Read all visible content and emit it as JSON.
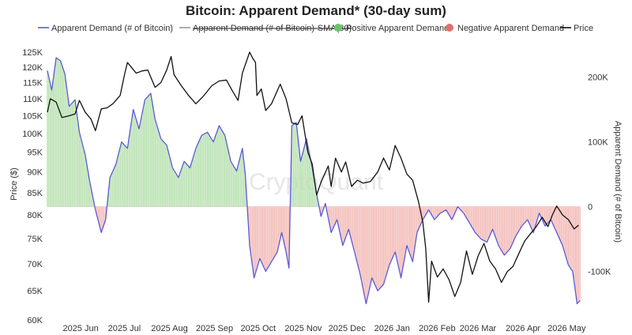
{
  "chart_data": {
    "type": "line",
    "title": "Bitcoin: Apparent Demand* (30-day sum)",
    "watermark": "CryptoQuant",
    "legend": {
      "placement": "top",
      "items": [
        {
          "label": "Apparent Demand (# of Bitcoin)",
          "color": "#5b5bd6",
          "style": "line"
        },
        {
          "label": "Apparent Demand (# of Bitcoin)-SMA(30)",
          "color": "#999999",
          "style": "strikethrough"
        },
        {
          "label": "Positive Apparent Demand",
          "color": "#6cc46c",
          "style": "dot"
        },
        {
          "label": "Negative Apparent Demand",
          "color": "#e07070",
          "style": "dot"
        },
        {
          "label": "Price",
          "color": "#111111",
          "style": "line"
        }
      ]
    },
    "left_axis": {
      "label": "Price ($)",
      "scale": "log",
      "range": [
        60000,
        128000
      ],
      "ticks": [
        60000,
        65000,
        70000,
        75000,
        80000,
        85000,
        90000,
        95000,
        100000,
        105000,
        110000,
        115000,
        120000,
        125000
      ],
      "tick_labels": [
        "60K",
        "65K",
        "70K",
        "75K",
        "80K",
        "85K",
        "90K",
        "95K",
        "100K",
        "105K",
        "110K",
        "115K",
        "120K",
        "125K"
      ]
    },
    "right_axis": {
      "label": "Apparent Demand (# of Bitcoin)",
      "scale": "linear",
      "range": [
        -175000,
        252000
      ],
      "ticks": [
        -100000,
        0,
        100000,
        200000
      ],
      "tick_labels": [
        "-100K",
        "0",
        "100K",
        "200K"
      ]
    },
    "x_axis": {
      "range": [
        "2025-05-20",
        "2026-05-22"
      ],
      "ticks": [
        "2025-06-01",
        "2025-07-01",
        "2025-08-01",
        "2025-09-01",
        "2025-10-01",
        "2025-11-01",
        "2025-12-01",
        "2026-01-01",
        "2026-02-01",
        "2026-03-01",
        "2026-04-01",
        "2026-05-01"
      ],
      "tick_labels": [
        "2025 Jun",
        "2025 Jul",
        "2025 Aug",
        "2025 Sep",
        "2025 Oct",
        "2025 Nov",
        "2025 Dec",
        "2026 Jan",
        "2026 Feb",
        "2026 Mar",
        "2026 Apr",
        "2026 May"
      ]
    },
    "grid": false,
    "series": [
      {
        "name": "Price",
        "axis": "left",
        "color": "#111111",
        "points": [
          [
            "2025-05-20",
            106000
          ],
          [
            "2025-05-22",
            110000
          ],
          [
            "2025-05-26",
            109000
          ],
          [
            "2025-05-30",
            104500
          ],
          [
            "2025-06-04",
            105000
          ],
          [
            "2025-06-08",
            105500
          ],
          [
            "2025-06-11",
            109500
          ],
          [
            "2025-06-15",
            106000
          ],
          [
            "2025-06-19",
            104000
          ],
          [
            "2025-06-22",
            100800
          ],
          [
            "2025-06-26",
            107000
          ],
          [
            "2025-06-30",
            107300
          ],
          [
            "2025-07-04",
            108500
          ],
          [
            "2025-07-09",
            111000
          ],
          [
            "2025-07-12",
            117500
          ],
          [
            "2025-07-14",
            121500
          ],
          [
            "2025-07-20",
            118000
          ],
          [
            "2025-07-24",
            118700
          ],
          [
            "2025-07-28",
            119000
          ],
          [
            "2025-08-02",
            113500
          ],
          [
            "2025-08-06",
            115000
          ],
          [
            "2025-08-10",
            119000
          ],
          [
            "2025-08-13",
            123500
          ],
          [
            "2025-08-15",
            117500
          ],
          [
            "2025-08-20",
            114000
          ],
          [
            "2025-08-25",
            111000
          ],
          [
            "2025-08-30",
            108500
          ],
          [
            "2025-09-04",
            110700
          ],
          [
            "2025-09-10",
            114000
          ],
          [
            "2025-09-15",
            115500
          ],
          [
            "2025-09-20",
            115800
          ],
          [
            "2025-09-24",
            112500
          ],
          [
            "2025-09-28",
            109500
          ],
          [
            "2025-10-01",
            118000
          ],
          [
            "2025-10-06",
            125000
          ],
          [
            "2025-10-08",
            123000
          ],
          [
            "2025-10-10",
            121500
          ],
          [
            "2025-10-11",
            111000
          ],
          [
            "2025-10-14",
            113000
          ],
          [
            "2025-10-17",
            106500
          ],
          [
            "2025-10-21",
            108500
          ],
          [
            "2025-10-27",
            114500
          ],
          [
            "2025-10-31",
            110000
          ],
          [
            "2025-11-04",
            103000
          ],
          [
            "2025-11-08",
            102500
          ],
          [
            "2025-11-11",
            105000
          ],
          [
            "2025-11-15",
            95000
          ],
          [
            "2025-11-18",
            92000
          ],
          [
            "2025-11-21",
            84500
          ],
          [
            "2025-11-24",
            87500
          ],
          [
            "2025-11-29",
            91500
          ],
          [
            "2025-12-01",
            86500
          ],
          [
            "2025-12-04",
            93500
          ],
          [
            "2025-12-08",
            90000
          ],
          [
            "2025-12-11",
            92500
          ],
          [
            "2025-12-15",
            86500
          ],
          [
            "2025-12-19",
            88000
          ],
          [
            "2025-12-23",
            87300
          ],
          [
            "2025-12-28",
            87700
          ],
          [
            "2026-01-02",
            90000
          ],
          [
            "2026-01-06",
            93500
          ],
          [
            "2026-01-10",
            90500
          ],
          [
            "2026-01-14",
            96800
          ],
          [
            "2026-01-18",
            93500
          ],
          [
            "2026-01-22",
            89500
          ],
          [
            "2026-01-26",
            88000
          ],
          [
            "2026-01-30",
            83000
          ],
          [
            "2026-02-02",
            78500
          ],
          [
            "2026-02-04",
            73000
          ],
          [
            "2026-02-06",
            63000
          ],
          [
            "2026-02-08",
            70500
          ],
          [
            "2026-02-12",
            67500
          ],
          [
            "2026-02-16",
            69000
          ],
          [
            "2026-02-20",
            67000
          ],
          [
            "2026-02-24",
            64000
          ],
          [
            "2026-02-28",
            66500
          ],
          [
            "2026-03-04",
            72500
          ],
          [
            "2026-03-08",
            68000
          ],
          [
            "2026-03-12",
            71500
          ],
          [
            "2026-03-16",
            74000
          ],
          [
            "2026-03-20",
            70500
          ],
          [
            "2026-03-24",
            69000
          ],
          [
            "2026-03-28",
            66500
          ],
          [
            "2026-04-01",
            68500
          ],
          [
            "2026-04-05",
            69500
          ],
          [
            "2026-04-09",
            72000
          ],
          [
            "2026-04-13",
            74500
          ],
          [
            "2026-04-17",
            76000
          ],
          [
            "2026-04-21",
            77500
          ],
          [
            "2026-04-25",
            79500
          ],
          [
            "2026-04-29",
            77500
          ],
          [
            "2026-05-02",
            80000
          ],
          [
            "2026-05-05",
            82000
          ],
          [
            "2026-05-09",
            80000
          ],
          [
            "2026-05-13",
            79000
          ],
          [
            "2026-05-17",
            77000
          ],
          [
            "2026-05-20",
            77800
          ]
        ]
      },
      {
        "name": "Apparent Demand (# of Bitcoin)",
        "axis": "right",
        "color": "#5b5bd6",
        "points": [
          [
            "2025-05-20",
            210000
          ],
          [
            "2025-05-23",
            180000
          ],
          [
            "2025-05-26",
            230000
          ],
          [
            "2025-05-29",
            225000
          ],
          [
            "2025-06-01",
            205000
          ],
          [
            "2025-06-04",
            155000
          ],
          [
            "2025-06-08",
            165000
          ],
          [
            "2025-06-11",
            115000
          ],
          [
            "2025-06-15",
            80000
          ],
          [
            "2025-06-18",
            40000
          ],
          [
            "2025-06-22",
            -5000
          ],
          [
            "2025-06-26",
            -40000
          ],
          [
            "2025-06-29",
            -20000
          ],
          [
            "2025-07-02",
            45000
          ],
          [
            "2025-07-06",
            65000
          ],
          [
            "2025-07-10",
            100000
          ],
          [
            "2025-07-14",
            90000
          ],
          [
            "2025-07-18",
            150000
          ],
          [
            "2025-07-22",
            120000
          ],
          [
            "2025-07-26",
            165000
          ],
          [
            "2025-07-30",
            175000
          ],
          [
            "2025-08-02",
            135000
          ],
          [
            "2025-08-06",
            105000
          ],
          [
            "2025-08-10",
            95000
          ],
          [
            "2025-08-14",
            60000
          ],
          [
            "2025-08-18",
            45000
          ],
          [
            "2025-08-22",
            70000
          ],
          [
            "2025-08-26",
            60000
          ],
          [
            "2025-08-30",
            90000
          ],
          [
            "2025-09-03",
            110000
          ],
          [
            "2025-09-07",
            115000
          ],
          [
            "2025-09-11",
            100000
          ],
          [
            "2025-09-15",
            125000
          ],
          [
            "2025-09-19",
            110000
          ],
          [
            "2025-09-23",
            70000
          ],
          [
            "2025-09-27",
            55000
          ],
          [
            "2025-10-01",
            90000
          ],
          [
            "2025-10-03",
            50000
          ],
          [
            "2025-10-06",
            -60000
          ],
          [
            "2025-10-09",
            -110000
          ],
          [
            "2025-10-13",
            -80000
          ],
          [
            "2025-10-17",
            -100000
          ],
          [
            "2025-10-21",
            -85000
          ],
          [
            "2025-10-25",
            -70000
          ],
          [
            "2025-10-28",
            -40000
          ],
          [
            "2025-10-31",
            -70000
          ],
          [
            "2025-11-02",
            -95000
          ],
          [
            "2025-11-04",
            125000
          ],
          [
            "2025-11-07",
            130000
          ],
          [
            "2025-11-10",
            70000
          ],
          [
            "2025-11-14",
            105000
          ],
          [
            "2025-11-18",
            60000
          ],
          [
            "2025-11-21",
            20000
          ],
          [
            "2025-11-24",
            -15000
          ],
          [
            "2025-11-27",
            5000
          ],
          [
            "2025-12-01",
            -40000
          ],
          [
            "2025-12-05",
            -20000
          ],
          [
            "2025-12-09",
            -60000
          ],
          [
            "2025-12-13",
            -35000
          ],
          [
            "2025-12-17",
            -70000
          ],
          [
            "2025-12-21",
            -105000
          ],
          [
            "2025-12-25",
            -150000
          ],
          [
            "2025-12-29",
            -110000
          ],
          [
            "2026-01-02",
            -130000
          ],
          [
            "2026-01-06",
            -120000
          ],
          [
            "2026-01-10",
            -90000
          ],
          [
            "2026-01-14",
            -70000
          ],
          [
            "2026-01-18",
            -110000
          ],
          [
            "2026-01-22",
            -60000
          ],
          [
            "2026-01-26",
            -85000
          ],
          [
            "2026-01-29",
            -40000
          ],
          [
            "2026-02-02",
            -20000
          ],
          [
            "2026-02-06",
            -5000
          ],
          [
            "2026-02-10",
            -20000
          ],
          [
            "2026-02-14",
            -10000
          ],
          [
            "2026-02-18",
            -5000
          ],
          [
            "2026-02-22",
            -20000
          ],
          [
            "2026-02-26",
            0
          ],
          [
            "2026-03-02",
            -10000
          ],
          [
            "2026-03-06",
            -25000
          ],
          [
            "2026-03-10",
            -40000
          ],
          [
            "2026-03-14",
            -50000
          ],
          [
            "2026-03-18",
            -55000
          ],
          [
            "2026-03-22",
            -35000
          ],
          [
            "2026-03-26",
            -60000
          ],
          [
            "2026-03-30",
            -75000
          ],
          [
            "2026-04-03",
            -65000
          ],
          [
            "2026-04-07",
            -45000
          ],
          [
            "2026-04-11",
            -30000
          ],
          [
            "2026-04-15",
            -20000
          ],
          [
            "2026-04-19",
            -40000
          ],
          [
            "2026-04-23",
            -10000
          ],
          [
            "2026-04-27",
            -30000
          ],
          [
            "2026-05-01",
            -20000
          ],
          [
            "2026-05-05",
            -40000
          ],
          [
            "2026-05-09",
            -60000
          ],
          [
            "2026-05-13",
            -90000
          ],
          [
            "2026-05-16",
            -100000
          ],
          [
            "2026-05-19",
            -150000
          ],
          [
            "2026-05-21",
            -145000
          ]
        ]
      }
    ]
  }
}
